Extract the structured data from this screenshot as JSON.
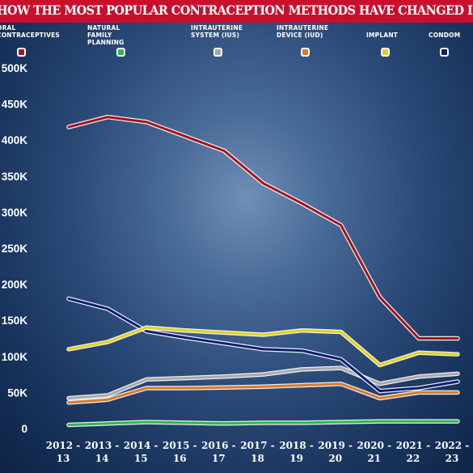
{
  "chart_data": {
    "type": "line",
    "title": "HOW THE MOST POPULAR CONTRACEPTION METHODS HAVE CHANGED IN A DECADE",
    "xlabel": "",
    "ylabel": "",
    "categories": [
      "2012 - 13",
      "2013 - 14",
      "2014 - 15",
      "2015 - 16",
      "2016 - 17",
      "2017 - 18",
      "2018 - 19",
      "2019 - 20",
      "2020 - 21",
      "2021 - 22",
      "2022 - 23"
    ],
    "ylim": [
      0,
      500000
    ],
    "y_ticks": [
      "0",
      "50K",
      "100K",
      "150K",
      "200K",
      "250K",
      "300K",
      "350K",
      "400K",
      "450K",
      "500K"
    ],
    "legend_position": "top",
    "grid": false,
    "series": [
      {
        "name": "ORAL CONTRACEPTIVES",
        "color": "#a3141c",
        "values": [
          418000,
          432000,
          425000,
          405000,
          385000,
          340000,
          312000,
          282000,
          182000,
          125000,
          125000
        ]
      },
      {
        "name": "NATURAL FAMILY PLANNING",
        "color": "#2fb84a",
        "values": [
          5000,
          7000,
          9000,
          8000,
          7000,
          8000,
          8000,
          9000,
          10000,
          10000,
          10000
        ]
      },
      {
        "name": "INTRAUTERINE SYSTEM (IUS)",
        "color": "#a9a9a9",
        "values": [
          42000,
          46000,
          68000,
          70000,
          72000,
          75000,
          82000,
          84000,
          62000,
          72000,
          76000
        ]
      },
      {
        "name": "INTRAUTERINE DEVICE (IUD)",
        "color": "#d97a2a",
        "values": [
          36000,
          40000,
          56000,
          56000,
          57000,
          58000,
          60000,
          62000,
          42000,
          50000,
          50000
        ]
      },
      {
        "name": "IMPLANT",
        "color": "#e3d21a",
        "values": [
          110000,
          120000,
          140000,
          136000,
          133000,
          130000,
          136000,
          134000,
          88000,
          105000,
          103000
        ]
      },
      {
        "name": "CONDOM",
        "color": "#0d1f6e",
        "values": [
          180000,
          166000,
          135000,
          126000,
          118000,
          110000,
          108000,
          96000,
          52000,
          56000,
          65000
        ]
      }
    ]
  }
}
